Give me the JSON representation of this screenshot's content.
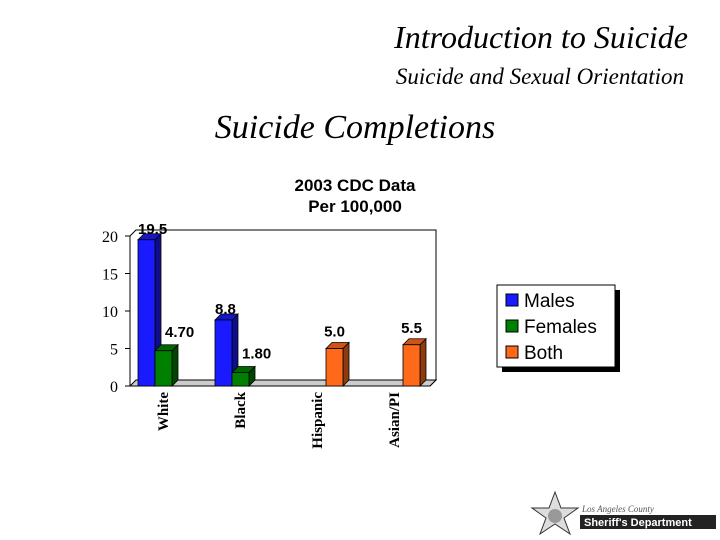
{
  "header": {
    "title": "Introduction to Suicide",
    "subtitle": "Suicide and Sexual Orientation",
    "heading": "Suicide Completions"
  },
  "chart_data": {
    "type": "bar",
    "title": [
      "2003 CDC Data",
      "Per 100,000"
    ],
    "categories": [
      "White",
      "Black",
      "Hispanic",
      "Asian/PI"
    ],
    "series": [
      {
        "name": "Males",
        "color": "#1a1aff",
        "values": [
          19.5,
          8.8,
          null,
          null
        ]
      },
      {
        "name": "Females",
        "color": "#008000",
        "values": [
          4.7,
          1.8,
          null,
          null
        ],
        "value_labels": [
          "4.70",
          "1.80",
          null,
          null
        ]
      },
      {
        "name": "Both",
        "color": "#ff6a1a",
        "values": [
          null,
          null,
          5.0,
          5.5
        ],
        "value_labels": [
          null,
          null,
          "5.0",
          "5.5"
        ]
      }
    ],
    "ylim": [
      0,
      20
    ],
    "yticks": [
      0,
      5,
      10,
      15,
      20
    ],
    "legend": "right"
  },
  "logo": {
    "line1": "Los Angeles County",
    "line2": "Sheriff's Department"
  }
}
